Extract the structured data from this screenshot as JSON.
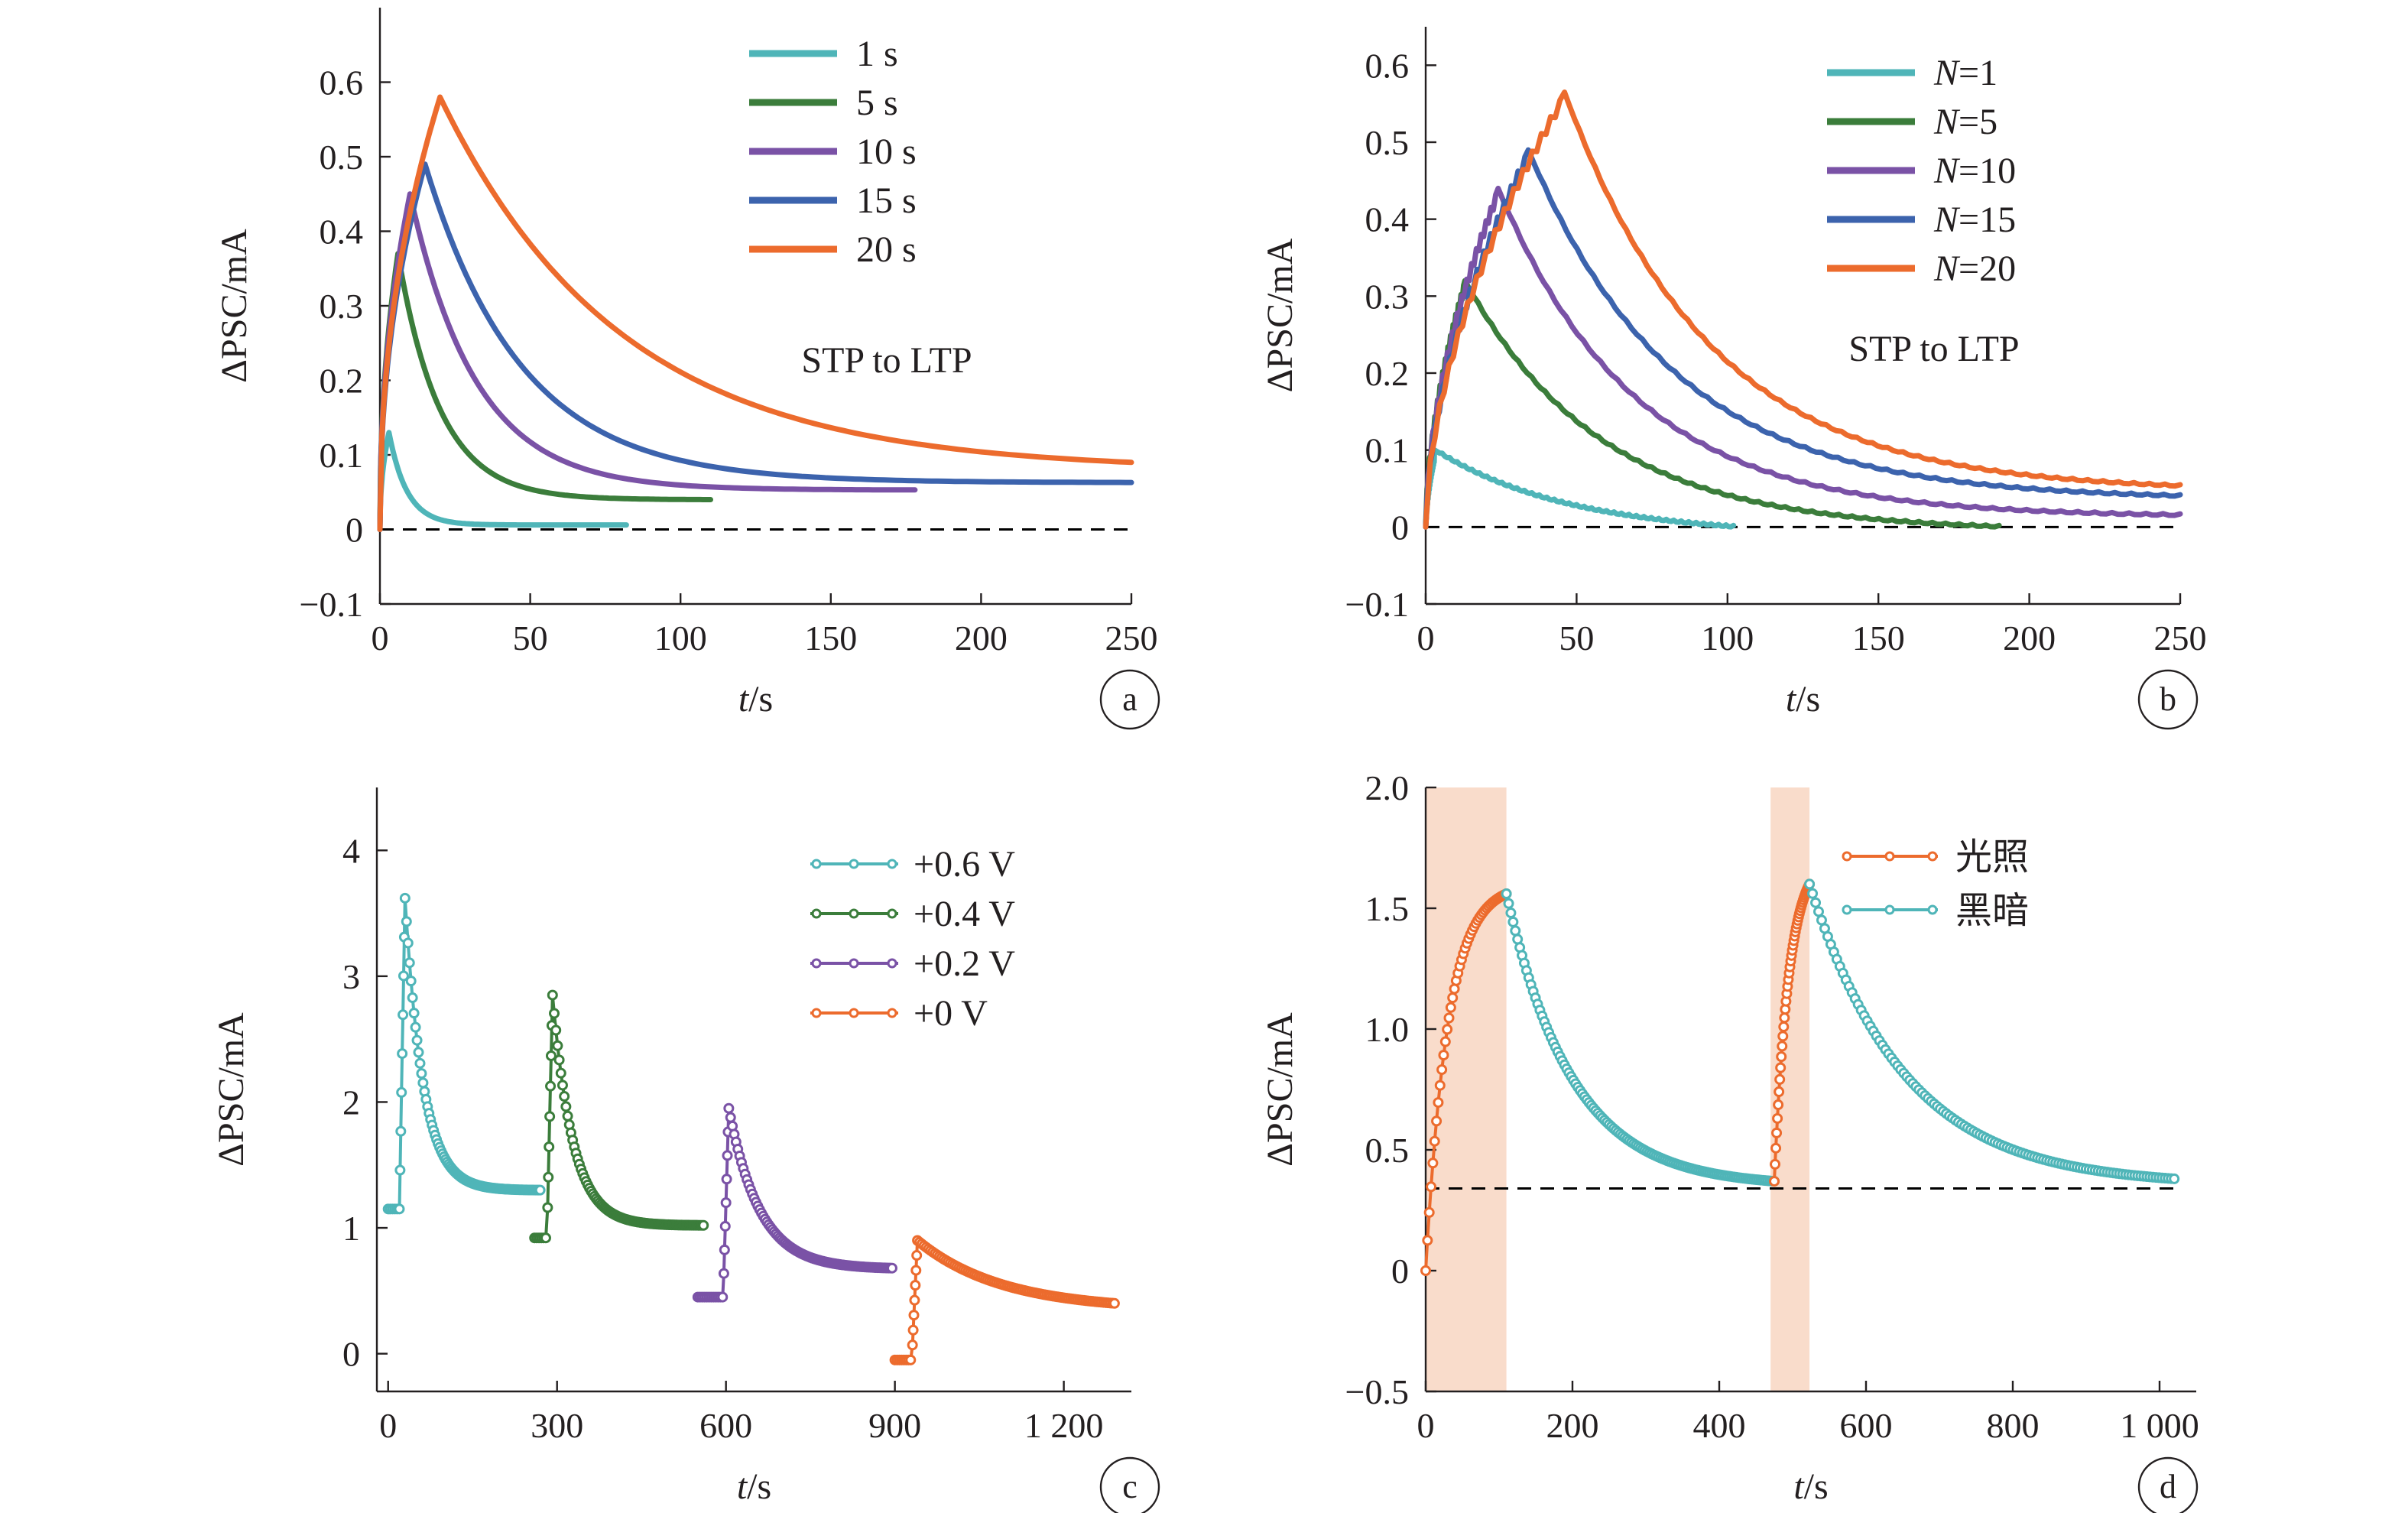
{
  "colors": {
    "cyan": "#4fb5b8",
    "green": "#3b7d3b",
    "purple": "#7a52a6",
    "blue": "#3c63ad",
    "orange": "#ec6b2d",
    "shade": "#f9dccb",
    "axis": "#231f20"
  },
  "chart_data": [
    {
      "id": "a",
      "type": "line",
      "panel_label": "a",
      "xlabel_italic": "t",
      "xlabel_unit": "/s",
      "ylabel": "ΔPSC/mA",
      "xlim": [
        0,
        250
      ],
      "ylim": [
        -0.1,
        0.7
      ],
      "xticks": [
        0,
        50,
        100,
        150,
        200,
        250
      ],
      "xtick_labels": [
        "0",
        "50",
        "100",
        "150",
        "200",
        "250"
      ],
      "yticks": [
        -0.1,
        0,
        0.1,
        0.2,
        0.3,
        0.4,
        0.5,
        0.6
      ],
      "ytick_labels": [
        "−0.1",
        "0",
        "0.1",
        "0.2",
        "0.3",
        "0.4",
        "0.5",
        "0.6"
      ],
      "baseline": 0,
      "annotation": "STP to LTP",
      "legend_position": "top-right",
      "series": [
        {
          "name": "1 s",
          "color": "cyan",
          "peak_t": 3,
          "peak_v": 0.13,
          "end_t": 82,
          "end_v": 0.006,
          "tau": 6
        },
        {
          "name": "5 s",
          "color": "green",
          "peak_t": 6,
          "peak_v": 0.37,
          "end_t": 110,
          "end_v": 0.04,
          "tau": 14
        },
        {
          "name": "10 s",
          "color": "purple",
          "peak_t": 10,
          "peak_v": 0.45,
          "end_t": 178,
          "end_v": 0.053,
          "tau": 22
        },
        {
          "name": "15 s",
          "color": "blue",
          "peak_t": 15,
          "peak_v": 0.49,
          "end_t": 250,
          "end_v": 0.063,
          "tau": 32
        },
        {
          "name": "20 s",
          "color": "orange",
          "peak_t": 20,
          "peak_v": 0.58,
          "end_t": 250,
          "end_v": 0.09,
          "tau": 60
        }
      ]
    },
    {
      "id": "b",
      "type": "line",
      "panel_label": "b",
      "xlabel_italic": "t",
      "xlabel_unit": "/s",
      "ylabel": "ΔPSC/mA",
      "xlim": [
        0,
        250
      ],
      "ylim": [
        -0.1,
        0.65
      ],
      "xticks": [
        0,
        50,
        100,
        150,
        200,
        250
      ],
      "xtick_labels": [
        "0",
        "50",
        "100",
        "150",
        "200",
        "250"
      ],
      "yticks": [
        -0.1,
        0,
        0.1,
        0.2,
        0.3,
        0.4,
        0.5,
        0.6
      ],
      "ytick_labels": [
        "−0.1",
        "0",
        "0.1",
        "0.2",
        "0.3",
        "0.4",
        "0.5",
        "0.6"
      ],
      "baseline": 0,
      "annotation": "STP to LTP",
      "legend_position": "top-right",
      "series": [
        {
          "name_italic": "N",
          "name_rest": "=1",
          "color": "cyan",
          "peak_t": 3,
          "peak_v": 0.1,
          "end_t": 102,
          "end_v": 0.0,
          "tau": 45
        },
        {
          "name_italic": "N",
          "name_rest": "=5",
          "color": "green",
          "peak_t": 13,
          "peak_v": 0.32,
          "end_t": 190,
          "end_v": 0.0,
          "tau": 45
        },
        {
          "name_italic": "N",
          "name_rest": "=10",
          "color": "purple",
          "peak_t": 24,
          "peak_v": 0.44,
          "end_t": 250,
          "end_v": 0.015,
          "tau": 45
        },
        {
          "name_italic": "N",
          "name_rest": "=15",
          "color": "blue",
          "peak_t": 34,
          "peak_v": 0.49,
          "end_t": 250,
          "end_v": 0.04,
          "tau": 48
        },
        {
          "name_italic": "N",
          "name_rest": "=20",
          "color": "orange",
          "peak_t": 46,
          "peak_v": 0.565,
          "end_t": 250,
          "end_v": 0.053,
          "tau": 48
        }
      ]
    },
    {
      "id": "c",
      "type": "line",
      "panel_label": "c",
      "xlabel_italic": "t",
      "xlabel_unit": "/s",
      "ylabel": "ΔPSC/mA",
      "xlim": [
        -20,
        1320
      ],
      "ylim": [
        -0.3,
        4.5
      ],
      "xticks": [
        0,
        300,
        600,
        900,
        1200
      ],
      "xtick_labels": [
        "0",
        "300",
        "600",
        "900",
        "1 200"
      ],
      "yticks": [
        0,
        1,
        2,
        3,
        4
      ],
      "ytick_labels": [
        "0",
        "1",
        "2",
        "3",
        "4"
      ],
      "legend_position": "top-right",
      "series": [
        {
          "name": "+0.6 V",
          "color": "cyan",
          "start_t": 0,
          "rise_t": 20,
          "pre_v": 1.15,
          "peak_t": 30,
          "peak_v": 3.62,
          "end_t": 270,
          "end_v": 1.3,
          "tau": 32
        },
        {
          "name": "+0.4 V",
          "color": "green",
          "start_t": 260,
          "rise_t": 282,
          "pre_v": 0.92,
          "peak_t": 292,
          "peak_v": 2.85,
          "end_t": 560,
          "end_v": 1.02,
          "tau": 36
        },
        {
          "name": "+0.2 V",
          "color": "purple",
          "start_t": 550,
          "rise_t": 595,
          "pre_v": 0.45,
          "peak_t": 605,
          "peak_v": 1.95,
          "end_t": 895,
          "end_v": 0.68,
          "tau": 55
        },
        {
          "name": "+0 V",
          "color": "orange",
          "start_t": 900,
          "rise_t": 930,
          "pre_v": -0.05,
          "peak_t": 940,
          "peak_v": 0.9,
          "end_t": 1290,
          "end_v": 0.4,
          "tau": 150
        }
      ]
    },
    {
      "id": "d",
      "type": "line",
      "panel_label": "d",
      "xlabel_italic": "t",
      "xlabel_unit": "/s",
      "ylabel": "ΔPSC/mA",
      "xlim": [
        0,
        1050
      ],
      "ylim": [
        -0.5,
        2.0
      ],
      "xticks": [
        0,
        200,
        400,
        600,
        800,
        1000
      ],
      "xtick_labels": [
        "0",
        "200",
        "400",
        "600",
        "800",
        "1 000"
      ],
      "yticks": [
        -0.5,
        0,
        0.5,
        1.0,
        1.5,
        2.0
      ],
      "ytick_labels": [
        "−0.5",
        "0",
        "0.5",
        "1.0",
        "1.5",
        "2.0"
      ],
      "baseline": 0.34,
      "shaded_intervals": [
        [
          0,
          110
        ],
        [
          470,
          523
        ]
      ],
      "legend_position": "top-right",
      "legend": [
        {
          "name": "光照",
          "color": "orange"
        },
        {
          "name": "黑暗",
          "color": "cyan"
        }
      ],
      "segments": [
        {
          "phase": "light",
          "color": "orange",
          "t0": 0,
          "t1": 110,
          "v0": 0.0,
          "v1": 1.56,
          "tau": 30
        },
        {
          "phase": "dark",
          "color": "cyan",
          "t0": 110,
          "t1": 475,
          "v0": 1.56,
          "v1": 0.37,
          "tau": 90
        },
        {
          "phase": "light",
          "color": "orange",
          "t0": 475,
          "t1": 523,
          "v0": 0.37,
          "v1": 1.6,
          "tau": 20
        },
        {
          "phase": "dark",
          "color": "cyan",
          "t0": 523,
          "t1": 1020,
          "v0": 1.6,
          "v1": 0.38,
          "tau": 130
        }
      ]
    }
  ]
}
